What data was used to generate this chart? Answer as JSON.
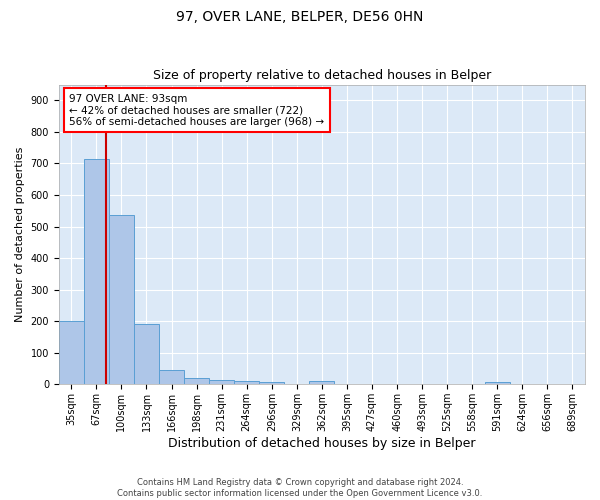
{
  "title": "97, OVER LANE, BELPER, DE56 0HN",
  "subtitle": "Size of property relative to detached houses in Belper",
  "xlabel": "Distribution of detached houses by size in Belper",
  "ylabel": "Number of detached properties",
  "categories": [
    "35sqm",
    "67sqm",
    "100sqm",
    "133sqm",
    "166sqm",
    "198sqm",
    "231sqm",
    "264sqm",
    "296sqm",
    "329sqm",
    "362sqm",
    "395sqm",
    "427sqm",
    "460sqm",
    "493sqm",
    "525sqm",
    "558sqm",
    "591sqm",
    "624sqm",
    "656sqm",
    "689sqm"
  ],
  "bar_values": [
    200,
    715,
    535,
    190,
    45,
    20,
    13,
    12,
    8,
    0,
    9,
    0,
    0,
    0,
    0,
    0,
    0,
    8,
    0,
    0,
    0
  ],
  "bar_color": "#aec6e8",
  "bar_edge_color": "#5a9fd4",
  "vline_color": "#cc0000",
  "annotation_text_line1": "97 OVER LANE: 93sqm",
  "annotation_text_line2": "← 42% of detached houses are smaller (722)",
  "annotation_text_line3": "56% of semi-detached houses are larger (968) →",
  "ylim": [
    0,
    950
  ],
  "yticks": [
    0,
    100,
    200,
    300,
    400,
    500,
    600,
    700,
    800,
    900
  ],
  "bg_color": "#dce9f7",
  "footer_text": "Contains HM Land Registry data © Crown copyright and database right 2024.\nContains public sector information licensed under the Open Government Licence v3.0.",
  "title_fontsize": 10,
  "subtitle_fontsize": 9,
  "xlabel_fontsize": 9,
  "ylabel_fontsize": 8,
  "tick_fontsize": 7,
  "ann_fontsize": 7.5
}
